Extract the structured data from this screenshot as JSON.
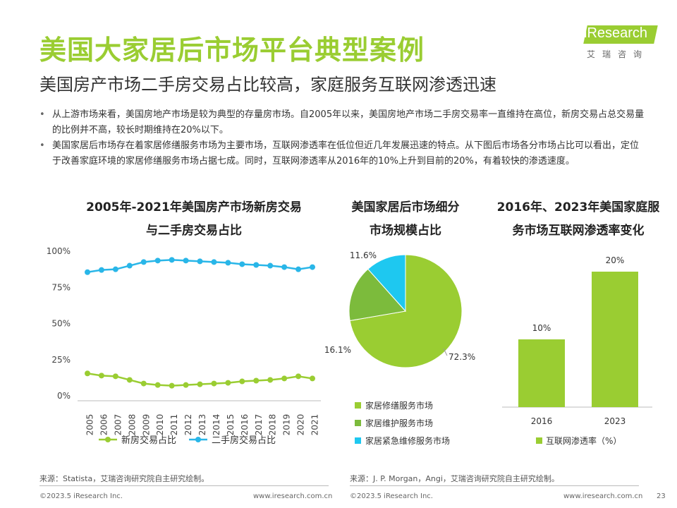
{
  "title": "美国大家居后市场平台典型案例",
  "subtitle": "美国房产市场二手房交易占比较高，家庭服务互联网渗透迅速",
  "logo": {
    "text": "iResearch",
    "cn": "艾瑞咨询"
  },
  "bullets": [
    "从上游市场来看，美国房地产市场是较为典型的存量房市场。自2005年以来，美国房地产市场二手房交易率一直维持在高位，新房交易占总交易量的比例并不高，较长时期维持在20%以下。",
    "美国家居后市场存在着家居修缮服务市场为主要市场，互联网渗透率在低位但近几年发展迅速的特点。从下图后市场各分市场占比可以看出，定位于改善家庭环境的家居修缮服务市场占据七成。同时，互联网渗透率从2016年的10%上升到目前的20%，有着较快的渗透速度。"
  ],
  "charts": {
    "line_title": [
      "2005年-2021年美国房产市场新房交易",
      "与二手房交易占比"
    ],
    "pie_title": [
      "美国家居后市场细分",
      "市场规模占比"
    ],
    "bar_title": [
      "2016年、2023年美国家庭服",
      "务市场互联网渗透率变化"
    ]
  },
  "sources": {
    "left": "来源：Statista，艾瑞咨询研究院自主研究绘制。",
    "right": "来源：J. P. Morgan，Angi，艾瑞咨询研究院自主研究绘制。"
  },
  "footer": {
    "copyright": "©2023.5 iResearch Inc.",
    "url": "www.iresearch.com.cn",
    "page": "23"
  },
  "chart_data": [
    {
      "type": "line",
      "x": [
        "2005",
        "2006",
        "2007",
        "2008",
        "2009",
        "2010",
        "2011",
        "2012",
        "2013",
        "2014",
        "2015",
        "2016",
        "2017",
        "2018",
        "2019",
        "2020",
        "2021"
      ],
      "series": [
        {
          "name": "新房交易占比",
          "color": "#9ACD32",
          "values": [
            15,
            13.5,
            13,
            10.5,
            8,
            7,
            6.5,
            7,
            7.5,
            8,
            8.5,
            9.5,
            10,
            10.5,
            11.5,
            13,
            11.5
          ]
        },
        {
          "name": "二手房交易占比",
          "color": "#29B6E8",
          "values": [
            85,
            86.5,
            87,
            89.5,
            92,
            93,
            93.5,
            93,
            92.5,
            92,
            91.5,
            90.5,
            90,
            89.5,
            88.5,
            87,
            88.5
          ]
        }
      ],
      "yticks": [
        "0%",
        "25%",
        "50%",
        "75%",
        "100%"
      ],
      "ylim": [
        0,
        100
      ],
      "legend": "bottom"
    },
    {
      "type": "pie",
      "slices": [
        {
          "name": "家居修缮服务市场",
          "value": 72.3,
          "label": "72.3%",
          "color": "#9ACD32"
        },
        {
          "name": "家居维护服务市场",
          "value": 16.1,
          "label": "16.1%",
          "color": "#7CBB3C"
        },
        {
          "name": "家居紧急维修服务市场",
          "value": 11.6,
          "label": "11.6%",
          "color": "#1EC8F0"
        }
      ],
      "legend": "bottom"
    },
    {
      "type": "bar",
      "categories": [
        "2016",
        "2023"
      ],
      "values": [
        10,
        20
      ],
      "labels": [
        "10%",
        "20%"
      ],
      "color": "#9ACD32",
      "legend": {
        "name": "互联网渗透率（%）",
        "placement": "bottom"
      }
    }
  ]
}
